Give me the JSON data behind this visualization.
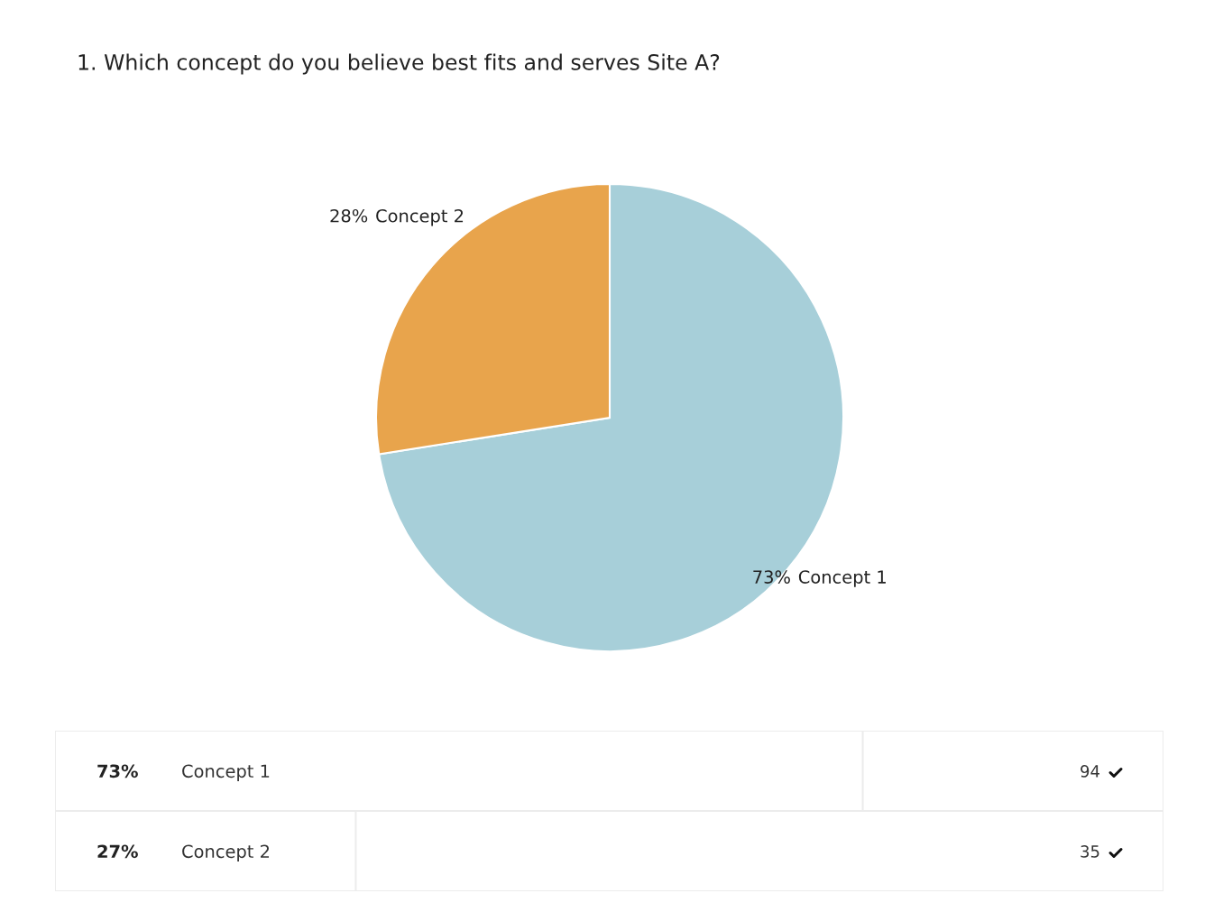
{
  "chart_data": [
    {
      "type": "pie",
      "title": "1. Which concept do you believe best fits and serves Site A?",
      "categories": [
        "Concept 1",
        "Concept 2"
      ],
      "values": [
        72.5,
        27.5
      ],
      "colors": [
        "#a7cfd9",
        "#e8a44c"
      ],
      "value_labels": [
        "73%",
        "28%"
      ]
    },
    {
      "type": "bar",
      "orientation": "horizontal",
      "categories": [
        "Concept 1",
        "Concept 2"
      ],
      "values": [
        94,
        35
      ],
      "color": "#ffffff",
      "data_labels": true,
      "annotations": [
        "73%",
        "27%"
      ]
    }
  ]
}
